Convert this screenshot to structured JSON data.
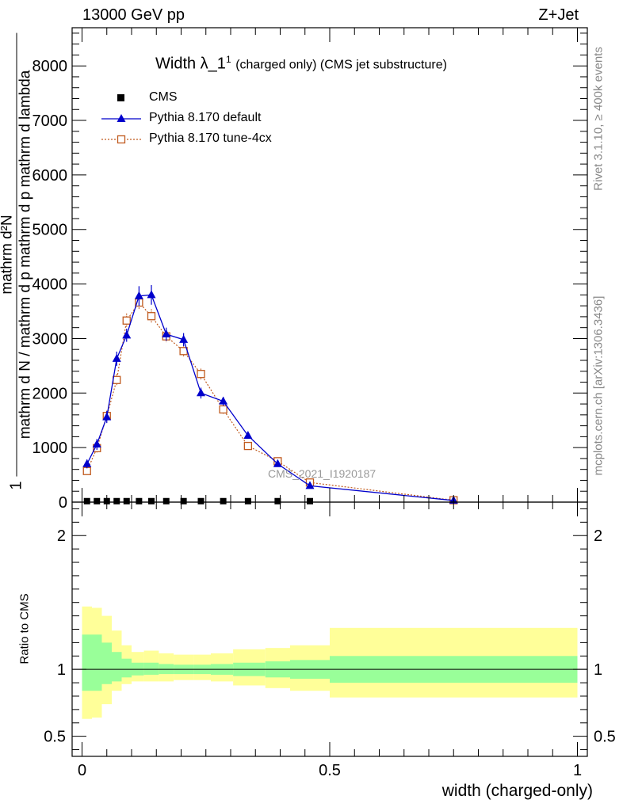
{
  "header": {
    "left": "13000 GeV pp",
    "right": "Z+Jet"
  },
  "title": {
    "main": "Width λ_1",
    "superscript": "1",
    "sub": "(charged only) (CMS jet substructure)"
  },
  "side_labels": {
    "rivet": "Rivet 3.1.10, ≥ 400k events",
    "mcplots": "mcplots.cern.ch [arXiv:1306.3436]"
  },
  "watermark": "CMS_2021_I1920187",
  "legend": [
    {
      "label": "CMS",
      "color": "#000000",
      "marker": "filled-square"
    },
    {
      "label": "Pythia 8.170 default",
      "color": "#0000cc",
      "marker": "filled-triangle"
    },
    {
      "label": "Pythia 8.170 tune-4cx",
      "color": "#c05a1e",
      "marker": "open-square"
    }
  ],
  "chart_data": {
    "type": "line",
    "xlabel": "width (charged-only)",
    "ylabel": "1 / mathrm d N / mathrm d p_mathrm d p_mathrm d lambda mathrm d²N",
    "ylabel_parts": {
      "one": "1",
      "denominator": "mathrm d N / mathrm d p mathrm d p mathrm d lambda",
      "numerator": "mathrm d²N"
    },
    "xlim": [
      -0.02,
      1.02
    ],
    "ylim": [
      0,
      8700
    ],
    "yticks": [
      0,
      1000,
      2000,
      3000,
      4000,
      5000,
      6000,
      7000,
      8000
    ],
    "ytick_labels": [
      "0",
      "1000",
      "2000",
      "3000",
      "4000",
      "5000",
      "6000",
      "7000",
      "8000"
    ],
    "xticks": [
      0,
      0.5,
      1
    ],
    "xtick_labels": [
      "0",
      "0.5",
      "1"
    ],
    "series": [
      {
        "name": "CMS",
        "style": "markers",
        "color": "#000000",
        "x": [
          0.01,
          0.03,
          0.05,
          0.07,
          0.09,
          0.115,
          0.14,
          0.17,
          0.205,
          0.24,
          0.285,
          0.335,
          0.395,
          0.46
        ],
        "y": [
          18,
          18,
          18,
          18,
          18,
          18,
          18,
          18,
          18,
          18,
          18,
          18,
          18,
          18
        ]
      },
      {
        "name": "Pythia 8.170 default",
        "style": "line-triangle",
        "color": "#0000cc",
        "x": [
          0.01,
          0.03,
          0.05,
          0.07,
          0.09,
          0.115,
          0.14,
          0.17,
          0.205,
          0.24,
          0.285,
          0.335,
          0.395,
          0.46,
          0.75
        ],
        "y": [
          700,
          1060,
          1560,
          2630,
          3060,
          3780,
          3800,
          3080,
          2980,
          2000,
          1850,
          1220,
          700,
          300,
          30
        ],
        "err": [
          80,
          100,
          110,
          130,
          120,
          180,
          180,
          120,
          120,
          100,
          80,
          60,
          40,
          20,
          10
        ]
      },
      {
        "name": "Pythia 8.170 tune-4cx",
        "style": "dotted-open-square",
        "color": "#c05a1e",
        "x": [
          0.01,
          0.03,
          0.05,
          0.07,
          0.09,
          0.115,
          0.14,
          0.17,
          0.205,
          0.24,
          0.285,
          0.335,
          0.395,
          0.46,
          0.75
        ],
        "y": [
          570,
          990,
          1580,
          2240,
          3330,
          3660,
          3410,
          3040,
          2770,
          2350,
          1700,
          1030,
          750,
          360,
          35
        ],
        "err": [
          60,
          90,
          100,
          110,
          130,
          130,
          130,
          110,
          110,
          100,
          80,
          55,
          40,
          20,
          10
        ]
      }
    ],
    "ratio_panel": {
      "ylabel": "Ratio to CMS",
      "ylim": [
        0.35,
        2.25
      ],
      "yticks": [
        0.5,
        1,
        2
      ],
      "ytick_labels": [
        "0.5",
        "1",
        "2"
      ],
      "green_band_color": "#99ff99",
      "yellow_band_color": "#ffff99",
      "bins": [
        {
          "lo": 0.0,
          "hi": 0.02,
          "g": [
            0.84,
            1.26
          ],
          "y": [
            0.63,
            1.47
          ]
        },
        {
          "lo": 0.02,
          "hi": 0.04,
          "g": [
            0.84,
            1.26
          ],
          "y": [
            0.64,
            1.46
          ]
        },
        {
          "lo": 0.04,
          "hi": 0.06,
          "g": [
            0.89,
            1.2
          ],
          "y": [
            0.74,
            1.4
          ]
        },
        {
          "lo": 0.06,
          "hi": 0.08,
          "g": [
            0.91,
            1.13
          ],
          "y": [
            0.84,
            1.29
          ]
        },
        {
          "lo": 0.08,
          "hi": 0.1,
          "g": [
            0.94,
            1.08
          ],
          "y": [
            0.89,
            1.18
          ]
        },
        {
          "lo": 0.1,
          "hi": 0.125,
          "g": [
            0.955,
            1.05
          ],
          "y": [
            0.91,
            1.13
          ]
        },
        {
          "lo": 0.125,
          "hi": 0.155,
          "g": [
            0.96,
            1.05
          ],
          "y": [
            0.91,
            1.14
          ]
        },
        {
          "lo": 0.155,
          "hi": 0.185,
          "g": [
            0.965,
            1.04
          ],
          "y": [
            0.91,
            1.12
          ]
        },
        {
          "lo": 0.185,
          "hi": 0.225,
          "g": [
            0.965,
            1.035
          ],
          "y": [
            0.92,
            1.11
          ]
        },
        {
          "lo": 0.225,
          "hi": 0.26,
          "g": [
            0.965,
            1.035
          ],
          "y": [
            0.92,
            1.11
          ]
        },
        {
          "lo": 0.26,
          "hi": 0.305,
          "g": [
            0.96,
            1.04
          ],
          "y": [
            0.91,
            1.12
          ]
        },
        {
          "lo": 0.305,
          "hi": 0.37,
          "g": [
            0.95,
            1.05
          ],
          "y": [
            0.88,
            1.15
          ]
        },
        {
          "lo": 0.37,
          "hi": 0.42,
          "g": [
            0.94,
            1.06
          ],
          "y": [
            0.86,
            1.16
          ]
        },
        {
          "lo": 0.42,
          "hi": 0.5,
          "g": [
            0.93,
            1.07
          ],
          "y": [
            0.84,
            1.18
          ]
        },
        {
          "lo": 0.5,
          "hi": 1.0,
          "g": [
            0.9,
            1.1
          ],
          "y": [
            0.79,
            1.31
          ]
        }
      ]
    }
  }
}
